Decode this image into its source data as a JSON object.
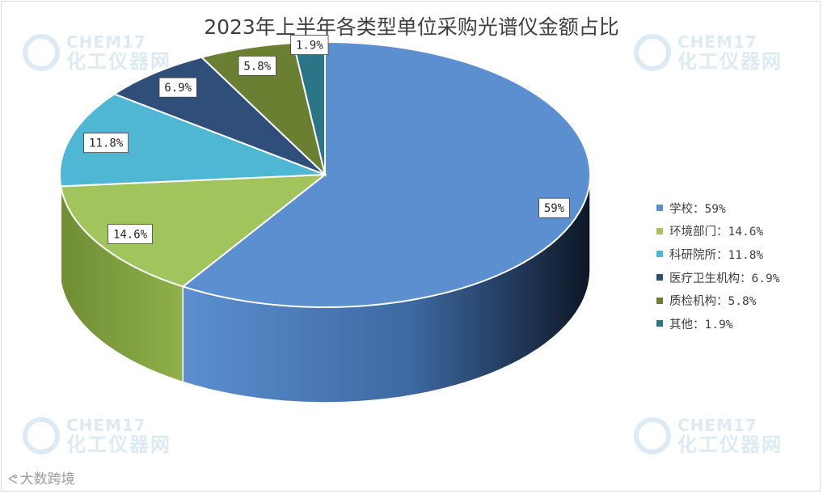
{
  "chart_data": {
    "type": "pie",
    "style": "3d",
    "title": "2023年上半年各类型单位采购光谱仪金额占比",
    "unit": "%",
    "legend_position": "right",
    "slices": [
      {
        "name": "学校",
        "value": 59,
        "label": "59%",
        "color": "#5b8fd0"
      },
      {
        "name": "环境部门",
        "value": 14.6,
        "label": "14.6%",
        "color": "#a2c45d"
      },
      {
        "name": "科研院所",
        "value": 11.8,
        "label": "11.8%",
        "color": "#4fb7d4"
      },
      {
        "name": "医疗卫生机构",
        "value": 6.9,
        "label": "6.9%",
        "color": "#2f4e7a"
      },
      {
        "name": "质检机构",
        "value": 5.8,
        "label": "5.8%",
        "color": "#6a7f31"
      },
      {
        "name": "其他",
        "value": 1.9,
        "label": "1.9%",
        "color": "#2a7586"
      }
    ],
    "legend_separator": "："
  },
  "watermark": {
    "brand_en": "CHEM17",
    "brand_cn": "化工仪器网"
  },
  "source": {
    "text": "大数跨境",
    "icon": "weibo-icon"
  }
}
